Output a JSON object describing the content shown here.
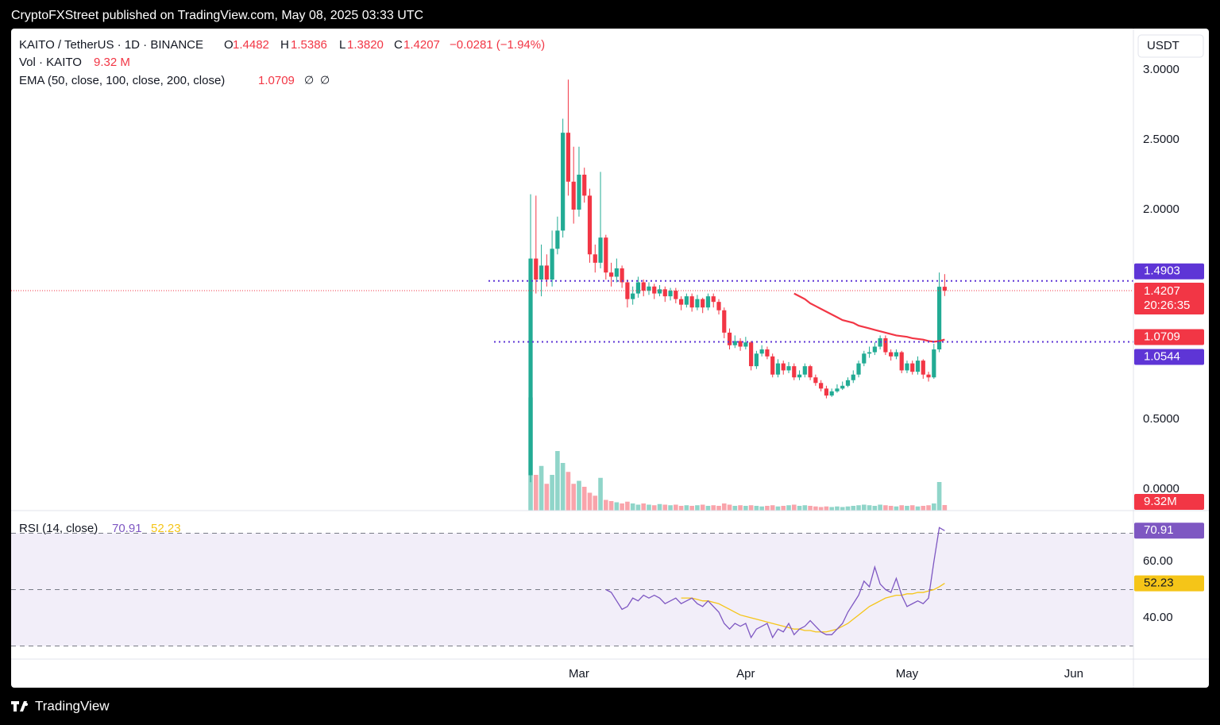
{
  "header": "CryptoFXStreet published on TradingView.com, May 08, 2025 03:33 UTC",
  "footer": "TradingView",
  "chart_data": {
    "type": "candlestick",
    "symbol": "KAITO / TetherUS · 1D · BINANCE",
    "ohlc_keys": [
      "O",
      "H",
      "L",
      "C"
    ],
    "ohlc_labels": [
      "1.4482",
      "1.5386",
      "1.3820",
      "1.4207"
    ],
    "change_label": "−0.0281 (−1.94%)",
    "volume_title": "Vol · KAITO",
    "volume_label": "9.32 M",
    "volume_axis_label": "9.32M",
    "ema_title": "EMA (50, close, 100, close, 200, close)",
    "ema_extra": [
      "∅",
      "∅"
    ],
    "currency": "USDT",
    "countdown": "20:26:35",
    "up_color": "#22ab94",
    "down_color": "#f23645",
    "ema_color": "#f23645",
    "level_color": "#5e35d6",
    "xlim": [
      -96.6,
      112.1
    ],
    "xticks": [
      {
        "value": 9,
        "label": "Mar"
      },
      {
        "value": 40,
        "label": "Apr"
      },
      {
        "value": 70,
        "label": "May"
      },
      {
        "value": 101,
        "label": "Jun"
      }
    ],
    "ylim": [
      -0.153,
      3.295
    ],
    "yticks": [
      {
        "value": 3,
        "label": "3.0000"
      },
      {
        "value": 2.5,
        "label": "2.5000"
      },
      {
        "value": 2,
        "label": "2.0000"
      },
      {
        "value": 0.5,
        "label": "0.5000"
      },
      {
        "value": 0,
        "label": "0.0000"
      }
    ],
    "levels": [
      1.4903,
      1.0544
    ],
    "open": [
      0.1,
      1.65,
      1.5,
      1.6,
      1.5,
      1.72,
      1.85,
      2.55,
      2.2,
      2.0,
      2.25,
      2.1,
      1.68,
      1.62,
      1.8,
      1.55,
      1.52,
      1.58,
      1.48,
      1.36,
      1.4,
      1.48,
      1.42,
      1.45,
      1.4,
      1.43,
      1.38,
      1.42,
      1.36,
      1.32,
      1.38,
      1.3,
      1.36,
      1.3,
      1.38,
      1.34,
      1.28,
      1.12,
      1.03,
      1.06,
      1.02,
      1.05,
      0.88,
      0.97,
      1.0,
      0.95,
      0.82,
      0.9,
      0.85,
      0.88,
      0.8,
      0.82,
      0.88,
      0.8,
      0.76,
      0.72,
      0.67,
      0.7,
      0.72,
      0.74,
      0.78,
      0.82,
      0.9,
      0.97,
      0.98,
      1.02,
      1.08,
      0.98,
      0.95,
      0.98,
      0.85,
      0.9,
      0.84,
      0.92,
      0.82,
      0.8,
      1.0,
      1.4482
    ],
    "high": [
      2.11,
      2.1,
      1.75,
      1.68,
      1.85,
      1.95,
      2.65,
      2.93,
      2.45,
      2.45,
      2.3,
      2.15,
      1.75,
      2.27,
      1.82,
      1.62,
      1.65,
      1.6,
      1.5,
      1.45,
      1.52,
      1.5,
      1.48,
      1.47,
      1.46,
      1.45,
      1.44,
      1.44,
      1.38,
      1.4,
      1.4,
      1.39,
      1.37,
      1.4,
      1.4,
      1.36,
      1.3,
      1.15,
      1.1,
      1.08,
      1.09,
      1.06,
      0.99,
      1.03,
      1.02,
      0.97,
      0.93,
      0.92,
      0.91,
      0.9,
      0.85,
      0.9,
      0.89,
      0.82,
      0.78,
      0.74,
      0.72,
      0.75,
      0.77,
      0.8,
      0.85,
      0.92,
      0.99,
      1.02,
      1.05,
      1.1,
      1.1,
      1.0,
      1.0,
      0.99,
      0.92,
      0.92,
      0.95,
      0.93,
      0.84,
      1.04,
      1.55,
      1.5386
    ],
    "low": [
      0.05,
      1.4,
      1.38,
      1.45,
      1.45,
      1.68,
      1.8,
      2.1,
      1.9,
      1.95,
      2.05,
      1.62,
      1.55,
      1.58,
      1.5,
      1.45,
      1.48,
      1.44,
      1.3,
      1.32,
      1.37,
      1.38,
      1.39,
      1.36,
      1.38,
      1.34,
      1.35,
      1.33,
      1.28,
      1.3,
      1.27,
      1.28,
      1.26,
      1.28,
      1.3,
      1.25,
      1.08,
      1.0,
      1.01,
      0.99,
      1.0,
      0.85,
      0.86,
      0.95,
      0.93,
      0.8,
      0.8,
      0.82,
      0.83,
      0.78,
      0.78,
      0.8,
      0.78,
      0.74,
      0.7,
      0.65,
      0.66,
      0.69,
      0.71,
      0.73,
      0.76,
      0.8,
      0.88,
      0.94,
      0.96,
      1.0,
      0.96,
      0.92,
      0.93,
      0.83,
      0.83,
      0.82,
      0.82,
      0.79,
      0.77,
      0.79,
      0.98,
      1.382
    ],
    "close": [
      1.65,
      1.5,
      1.6,
      1.5,
      1.72,
      1.85,
      2.55,
      2.2,
      2.0,
      2.25,
      2.1,
      1.68,
      1.62,
      1.8,
      1.55,
      1.52,
      1.58,
      1.48,
      1.36,
      1.4,
      1.48,
      1.42,
      1.45,
      1.4,
      1.43,
      1.38,
      1.42,
      1.36,
      1.32,
      1.38,
      1.3,
      1.36,
      1.3,
      1.38,
      1.34,
      1.28,
      1.12,
      1.03,
      1.06,
      1.02,
      1.05,
      0.88,
      0.97,
      1.0,
      0.95,
      0.82,
      0.9,
      0.85,
      0.88,
      0.8,
      0.82,
      0.88,
      0.8,
      0.76,
      0.72,
      0.67,
      0.7,
      0.72,
      0.74,
      0.78,
      0.82,
      0.9,
      0.97,
      0.98,
      1.02,
      1.08,
      0.98,
      0.95,
      0.98,
      0.85,
      0.9,
      0.84,
      0.92,
      0.82,
      0.8,
      1.0,
      1.4482,
      1.4207
    ],
    "volume": [
      190,
      60,
      75,
      45,
      60,
      100,
      80,
      65,
      45,
      50,
      40,
      30,
      25,
      55,
      18,
      16,
      14,
      12,
      15,
      12,
      10,
      12,
      10,
      9,
      11,
      10,
      9,
      10,
      8,
      9,
      8,
      9,
      10,
      8,
      9,
      8,
      12,
      10,
      8,
      9,
      8,
      9,
      8,
      7,
      8,
      9,
      7,
      8,
      9,
      10,
      8,
      9,
      8,
      7,
      6,
      7,
      6,
      7,
      6,
      7,
      8,
      9,
      10,
      9,
      8,
      10,
      9,
      8,
      7,
      9,
      8,
      9,
      7,
      8,
      9,
      12,
      48,
      9.32
    ],
    "ema": [
      null,
      null,
      null,
      null,
      null,
      null,
      null,
      null,
      null,
      null,
      null,
      null,
      null,
      null,
      null,
      null,
      null,
      null,
      null,
      null,
      null,
      null,
      null,
      null,
      null,
      null,
      null,
      null,
      null,
      null,
      null,
      null,
      null,
      null,
      null,
      null,
      null,
      null,
      null,
      null,
      null,
      null,
      null,
      null,
      null,
      null,
      null,
      null,
      null,
      1.4,
      1.38,
      1.36,
      1.33,
      1.31,
      1.29,
      1.27,
      1.25,
      1.23,
      1.21,
      1.2,
      1.19,
      1.17,
      1.16,
      1.15,
      1.14,
      1.13,
      1.12,
      1.11,
      1.1,
      1.095,
      1.09,
      1.08,
      1.075,
      1.07,
      1.06,
      1.055,
      1.06,
      1.0709
    ],
    "rsi": {
      "title": "RSI (14, close)",
      "color": "#7e57c2",
      "ma_color": "#f5c518",
      "ylim": [
        25.35,
        78.03
      ],
      "yticks": [
        {
          "value": 60,
          "label": "60.00"
        },
        {
          "value": 40,
          "label": "40.00"
        }
      ],
      "levels": [
        70,
        50,
        30
      ],
      "values": [
        null,
        null,
        null,
        null,
        null,
        null,
        null,
        null,
        null,
        null,
        null,
        null,
        null,
        null,
        50,
        49,
        46,
        43,
        44,
        47,
        46,
        48,
        47,
        48,
        47,
        45,
        46,
        47,
        45,
        46,
        47,
        45,
        44,
        46,
        44,
        42,
        38,
        36,
        38,
        37,
        38,
        33,
        36,
        37,
        38,
        33,
        36,
        35,
        38,
        34,
        36,
        37,
        39,
        37,
        35,
        34,
        34,
        36,
        38,
        42,
        45,
        48,
        53,
        51,
        58,
        52,
        50,
        49,
        54,
        48,
        44,
        45,
        46,
        45,
        47,
        60,
        72,
        70.91
      ],
      "ma": [
        null,
        null,
        null,
        null,
        null,
        null,
        null,
        null,
        null,
        null,
        null,
        null,
        null,
        null,
        null,
        null,
        null,
        null,
        null,
        null,
        null,
        null,
        null,
        null,
        null,
        null,
        null,
        null,
        47,
        47,
        47,
        46.5,
        46,
        46,
        45.5,
        45,
        44,
        43,
        42,
        41,
        40.5,
        40,
        39.5,
        39,
        38.5,
        38,
        37.5,
        37,
        36.5,
        36,
        36,
        35.5,
        35.5,
        35,
        35,
        35,
        35.5,
        36,
        37,
        38,
        39.5,
        41,
        42.5,
        44,
        45,
        46,
        47,
        47.5,
        48,
        48,
        48.5,
        48.5,
        49,
        49,
        49.5,
        50,
        51,
        52.23
      ]
    }
  }
}
